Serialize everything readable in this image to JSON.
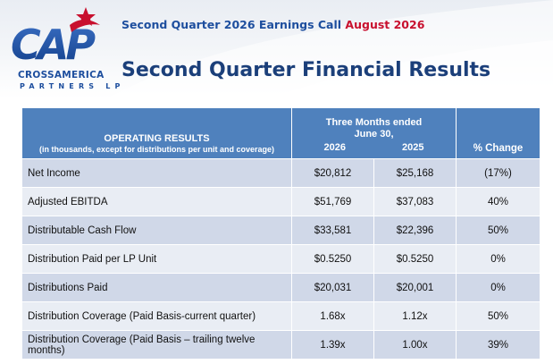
{
  "header": {
    "event": "Second Quarter 2026 Earnings Call",
    "date": "August 2026"
  },
  "logo": {
    "letters": "CAP",
    "name": "CROSSAMERICA",
    "sub": "PARTNERS LP"
  },
  "colors": {
    "brand_blue": "#1d4e9e",
    "brand_red": "#c8102e",
    "table_header": "#4f81bd",
    "row_odd": "#d0d8e8",
    "row_even": "#e9edf4"
  },
  "page_title": "Second Quarter Financial Results",
  "table": {
    "header": {
      "title": "OPERATING RESULTS",
      "subtitle": "(in thousands, except for distributions per unit and coverage)",
      "period_line1": "Three Months ended",
      "period_line2": "June 30,",
      "year_current": "2026",
      "year_prior": "2025",
      "change": "% Change"
    },
    "rows": [
      {
        "label": "Net Income",
        "current": "$20,812",
        "prior": "$25,168",
        "change": "(17%)"
      },
      {
        "label": "Adjusted EBITDA",
        "current": "$51,769",
        "prior": "$37,083",
        "change": "40%"
      },
      {
        "label": "Distributable Cash Flow",
        "current": "$33,581",
        "prior": "$22,396",
        "change": "50%"
      },
      {
        "label": "Distribution Paid per LP Unit",
        "current": "$0.5250",
        "prior": "$0.5250",
        "change": "0%"
      },
      {
        "label": "Distributions Paid",
        "current": "$20,031",
        "prior": "$20,001",
        "change": "0%"
      },
      {
        "label": "Distribution Coverage (Paid Basis-current quarter)",
        "current": "1.68x",
        "prior": "1.12x",
        "change": "50%"
      },
      {
        "label": "Distribution Coverage (Paid Basis – trailing twelve months)",
        "current": "1.39x",
        "prior": "1.00x",
        "change": "39%"
      }
    ]
  }
}
